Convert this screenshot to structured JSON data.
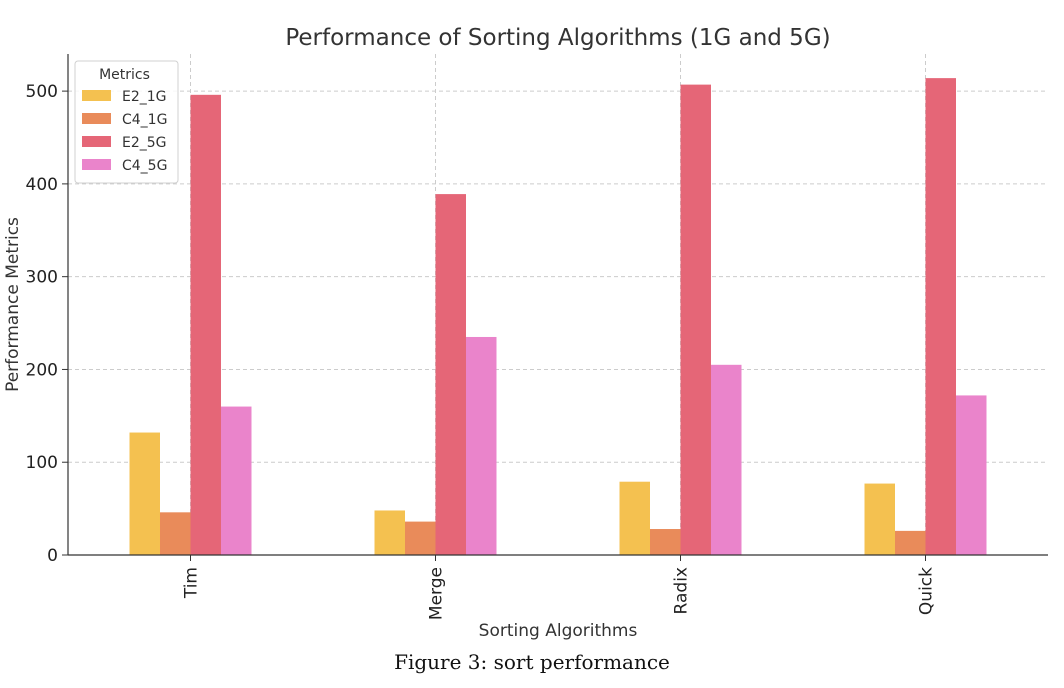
{
  "chart_data": {
    "type": "bar",
    "title": "Performance of Sorting Algorithms (1G and 5G)",
    "xlabel": "Sorting Algorithms",
    "ylabel": "Performance Metrics",
    "categories": [
      "Tim",
      "Merge",
      "Radix",
      "Quick"
    ],
    "ylim": [
      0,
      540
    ],
    "yticks": [
      0,
      100,
      200,
      300,
      400,
      500
    ],
    "grid": true,
    "legend": {
      "title": "Metrics",
      "placement": "top-left"
    },
    "series": [
      {
        "name": "E2_1G",
        "color": "#f4c150",
        "values": [
          132,
          48,
          79,
          77
        ]
      },
      {
        "name": "C4_1G",
        "color": "#e98b5a",
        "values": [
          46,
          36,
          28,
          26
        ]
      },
      {
        "name": "E2_5G",
        "color": "#e56677",
        "values": [
          496,
          389,
          507,
          514
        ]
      },
      {
        "name": "C4_5G",
        "color": "#ea84cb",
        "values": [
          160,
          235,
          205,
          172
        ]
      }
    ]
  },
  "caption": "Figure 3: sort performance"
}
